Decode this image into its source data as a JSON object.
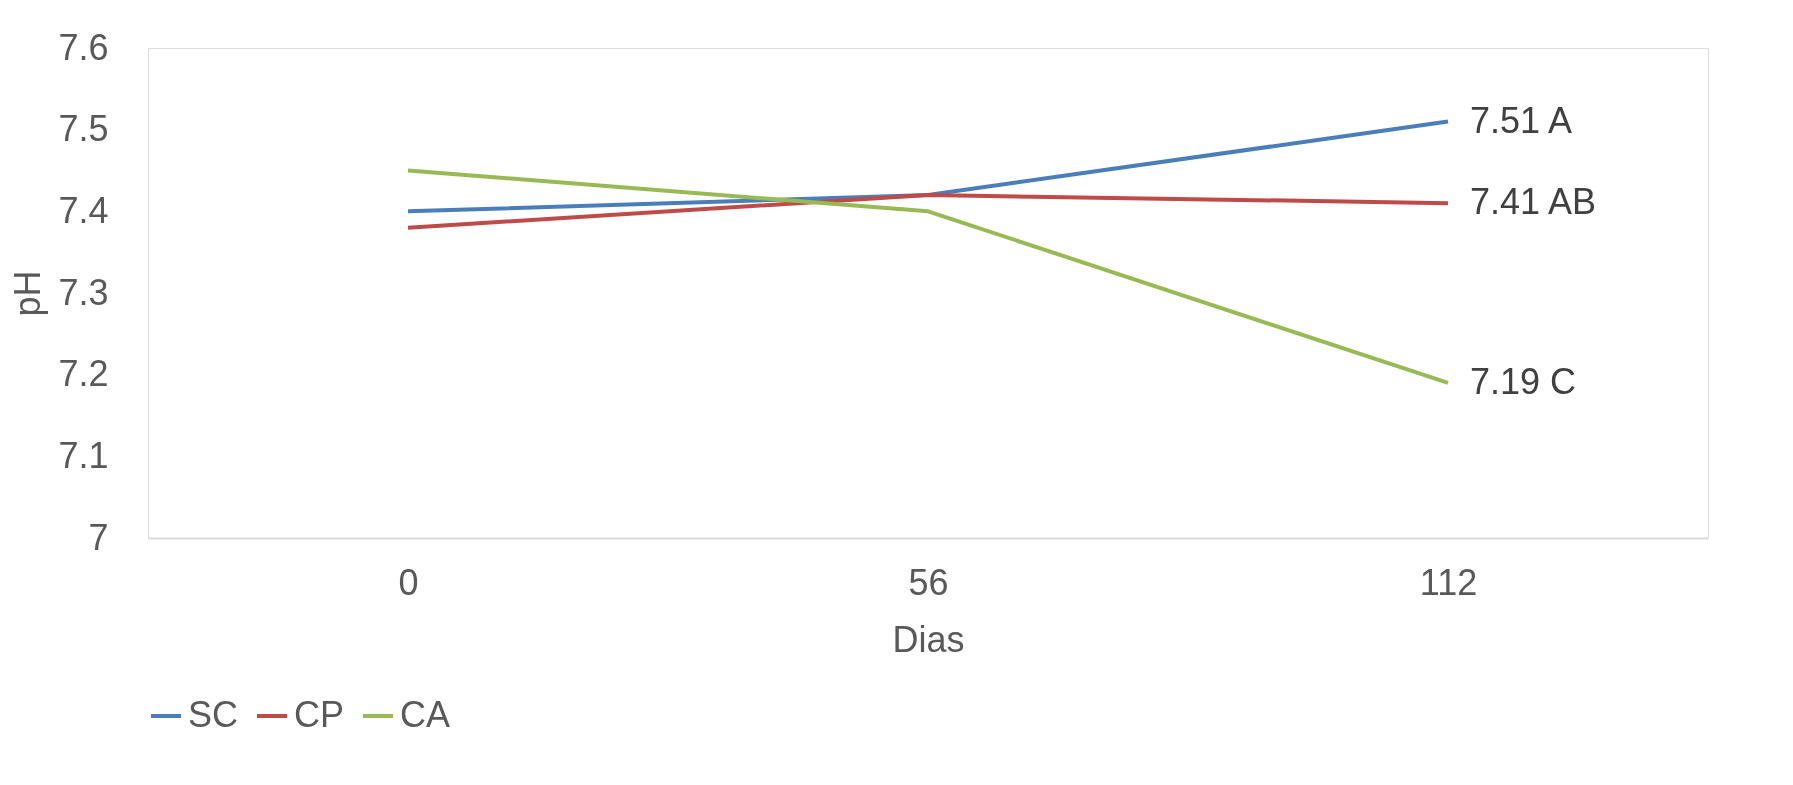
{
  "chart_data": {
    "type": "line",
    "xlabel": "Dias",
    "ylabel": "pH",
    "categories": [
      "0",
      "56",
      "112"
    ],
    "series": [
      {
        "name": "SC",
        "color": "#4a7ebb",
        "values": [
          7.4,
          7.42,
          7.51
        ]
      },
      {
        "name": "CP",
        "color": "#be4b48",
        "values": [
          7.38,
          7.42,
          7.41
        ]
      },
      {
        "name": "CA",
        "color": "#98b954",
        "values": [
          7.45,
          7.4,
          7.19
        ]
      }
    ],
    "ylim": [
      7,
      7.6
    ],
    "yticks": [
      7,
      7.1,
      7.2,
      7.3,
      7.4,
      7.5,
      7.6
    ],
    "annotations": [
      {
        "text": "7.51 A",
        "x": "112",
        "y": 7.51
      },
      {
        "text": "7.41 AB",
        "x": "112",
        "y": 7.41
      },
      {
        "text": "7.19  C",
        "x": "112",
        "y": 7.19
      }
    ],
    "grid": false,
    "legend": "bottom",
    "marker": "none",
    "line_style": "solid"
  }
}
